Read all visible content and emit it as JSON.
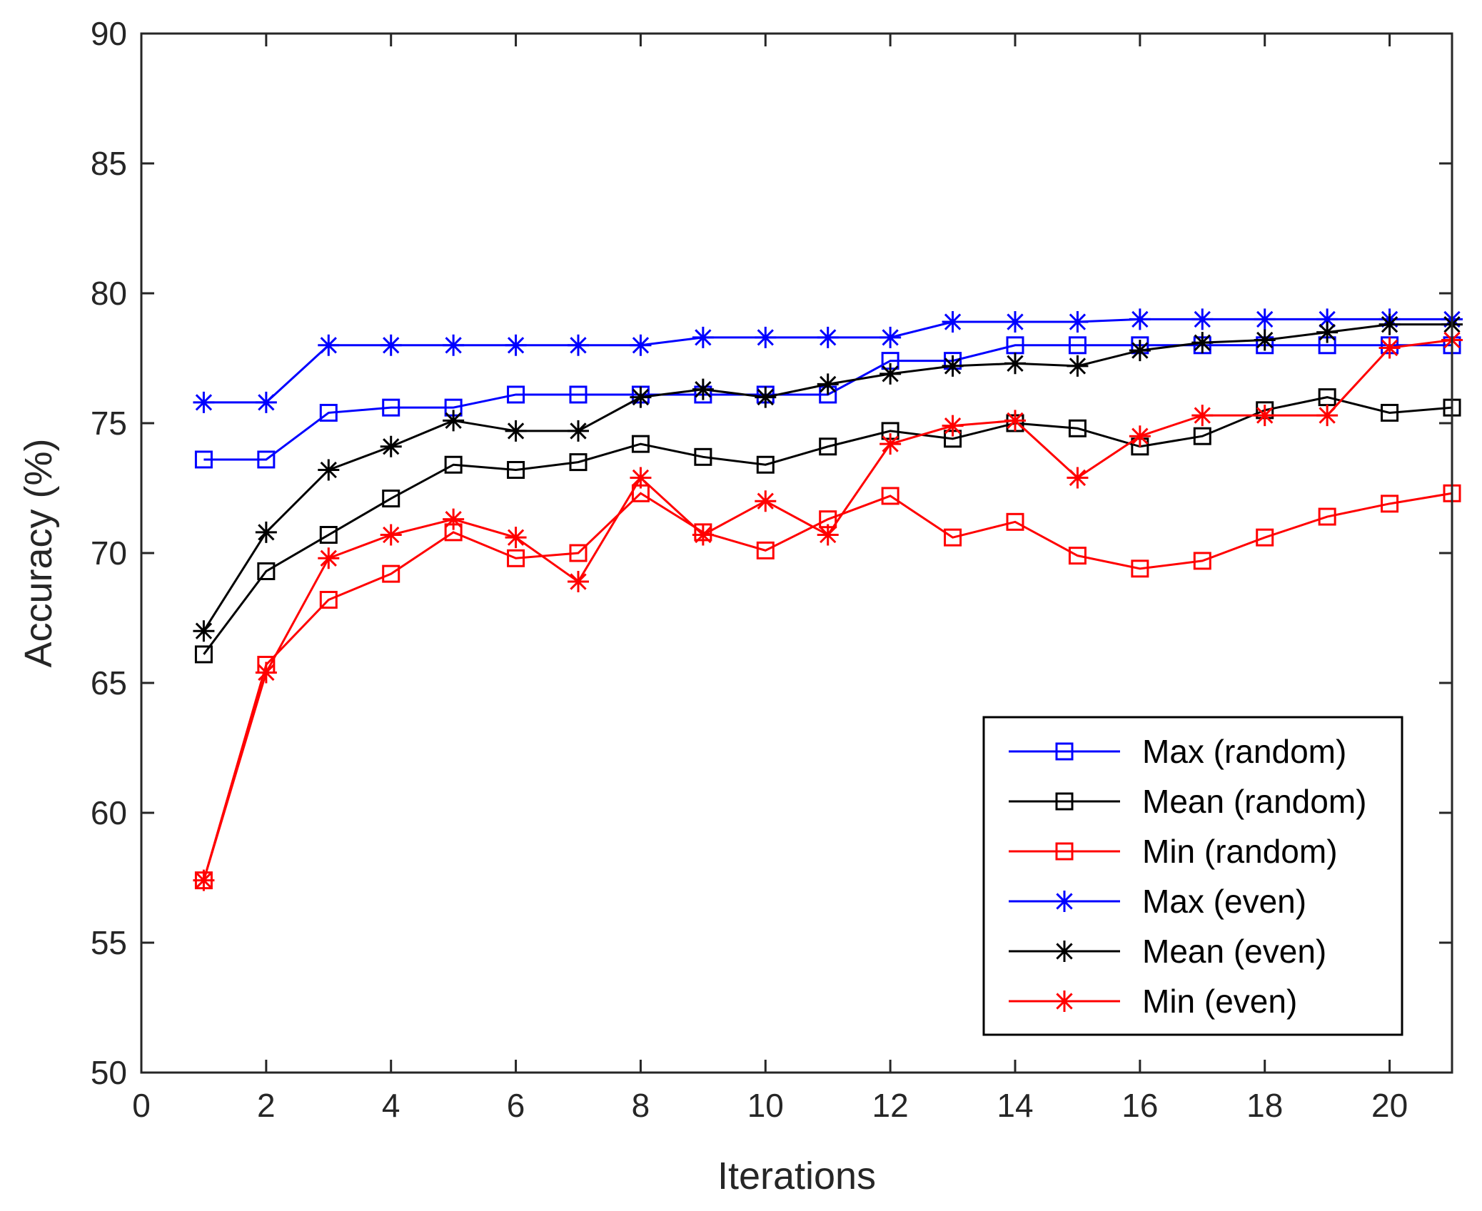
{
  "chart_data": {
    "type": "line",
    "xlabel": "Iterations",
    "ylabel": "Accuracy (%)",
    "xlim": [
      0,
      21
    ],
    "ylim": [
      50,
      90
    ],
    "xticks": [
      0,
      2,
      4,
      6,
      8,
      10,
      12,
      14,
      16,
      18,
      20
    ],
    "yticks": [
      50,
      55,
      60,
      65,
      70,
      75,
      80,
      85,
      90
    ],
    "grid": false,
    "legend_position": "bottom-right",
    "x": [
      1,
      2,
      3,
      4,
      5,
      6,
      7,
      8,
      9,
      10,
      11,
      12,
      13,
      14,
      15,
      16,
      17,
      18,
      19,
      20,
      21
    ],
    "series": [
      {
        "name": "Max (random)",
        "color": "#0000ff",
        "marker": "square",
        "values": [
          73.6,
          73.6,
          75.4,
          75.6,
          75.6,
          76.1,
          76.1,
          76.1,
          76.1,
          76.1,
          76.1,
          77.4,
          77.4,
          78.0,
          78.0,
          78.0,
          78.0,
          78.0,
          78.0,
          78.0,
          78.0
        ]
      },
      {
        "name": "Mean (random)",
        "color": "#000000",
        "marker": "square",
        "values": [
          66.1,
          69.3,
          70.7,
          72.1,
          73.4,
          73.2,
          73.5,
          74.2,
          73.7,
          73.4,
          74.1,
          74.7,
          74.4,
          75.0,
          74.8,
          74.1,
          74.5,
          75.5,
          76.0,
          75.4,
          75.6
        ]
      },
      {
        "name": "Min (random)",
        "color": "#ff0000",
        "marker": "square",
        "values": [
          57.4,
          65.7,
          68.2,
          69.2,
          70.8,
          69.8,
          70.0,
          72.3,
          70.8,
          70.1,
          71.3,
          72.2,
          70.6,
          71.2,
          69.9,
          69.4,
          69.7,
          70.6,
          71.4,
          71.9,
          72.3
        ]
      },
      {
        "name": "Max (even)",
        "color": "#0000ff",
        "marker": "asterisk",
        "values": [
          75.8,
          75.8,
          78.0,
          78.0,
          78.0,
          78.0,
          78.0,
          78.0,
          78.3,
          78.3,
          78.3,
          78.3,
          78.9,
          78.9,
          78.9,
          79.0,
          79.0,
          79.0,
          79.0,
          79.0,
          79.0
        ]
      },
      {
        "name": "Mean (even)",
        "color": "#000000",
        "marker": "asterisk",
        "values": [
          67.0,
          70.8,
          73.2,
          74.1,
          75.1,
          74.7,
          74.7,
          76.0,
          76.3,
          76.0,
          76.5,
          76.9,
          77.2,
          77.3,
          77.2,
          77.8,
          78.1,
          78.2,
          78.5,
          78.8,
          78.8
        ]
      },
      {
        "name": "Min (even)",
        "color": "#ff0000",
        "marker": "asterisk",
        "values": [
          57.4,
          65.4,
          69.8,
          70.7,
          71.3,
          70.6,
          68.9,
          72.9,
          70.7,
          72.0,
          70.7,
          74.2,
          74.9,
          75.1,
          72.9,
          74.5,
          75.3,
          75.3,
          75.3,
          77.9,
          78.2
        ]
      }
    ]
  }
}
